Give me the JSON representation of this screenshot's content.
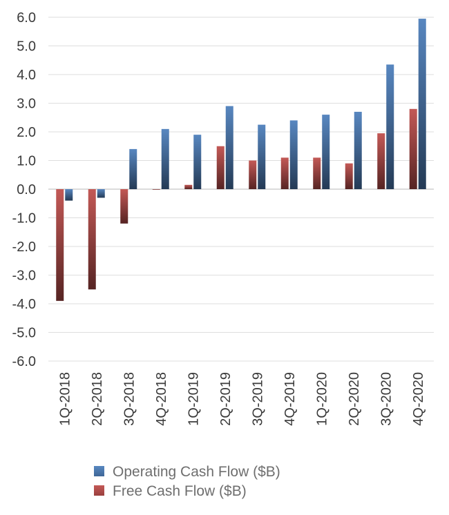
{
  "chart_data": {
    "type": "bar",
    "title": "",
    "xlabel": "",
    "ylabel": "",
    "ylim": [
      -6.0,
      6.0
    ],
    "ytick_step": 1.0,
    "grid": true,
    "legend_position": "bottom",
    "categories": [
      "1Q-2018",
      "2Q-2018",
      "3Q-2018",
      "4Q-2018",
      "1Q-2019",
      "2Q-2019",
      "3Q-2019",
      "4Q-2019",
      "1Q-2020",
      "2Q-2020",
      "3Q-2020",
      "4Q-2020"
    ],
    "series": [
      {
        "name": "Free Cash Flow ($B)",
        "color": "#c0504d",
        "values": [
          -3.9,
          -3.5,
          -1.2,
          0.0,
          0.15,
          1.5,
          1.0,
          1.1,
          1.1,
          0.9,
          1.95,
          2.8
        ]
      },
      {
        "name": "Operating Cash Flow ($B)",
        "color": "#4f81bd",
        "values": [
          -0.4,
          -0.3,
          1.4,
          2.1,
          1.9,
          2.9,
          2.25,
          2.4,
          2.6,
          2.7,
          4.35,
          5.95
        ]
      }
    ],
    "legend_order": [
      "Operating Cash Flow ($B)",
      "Free Cash Flow ($B)"
    ]
  }
}
